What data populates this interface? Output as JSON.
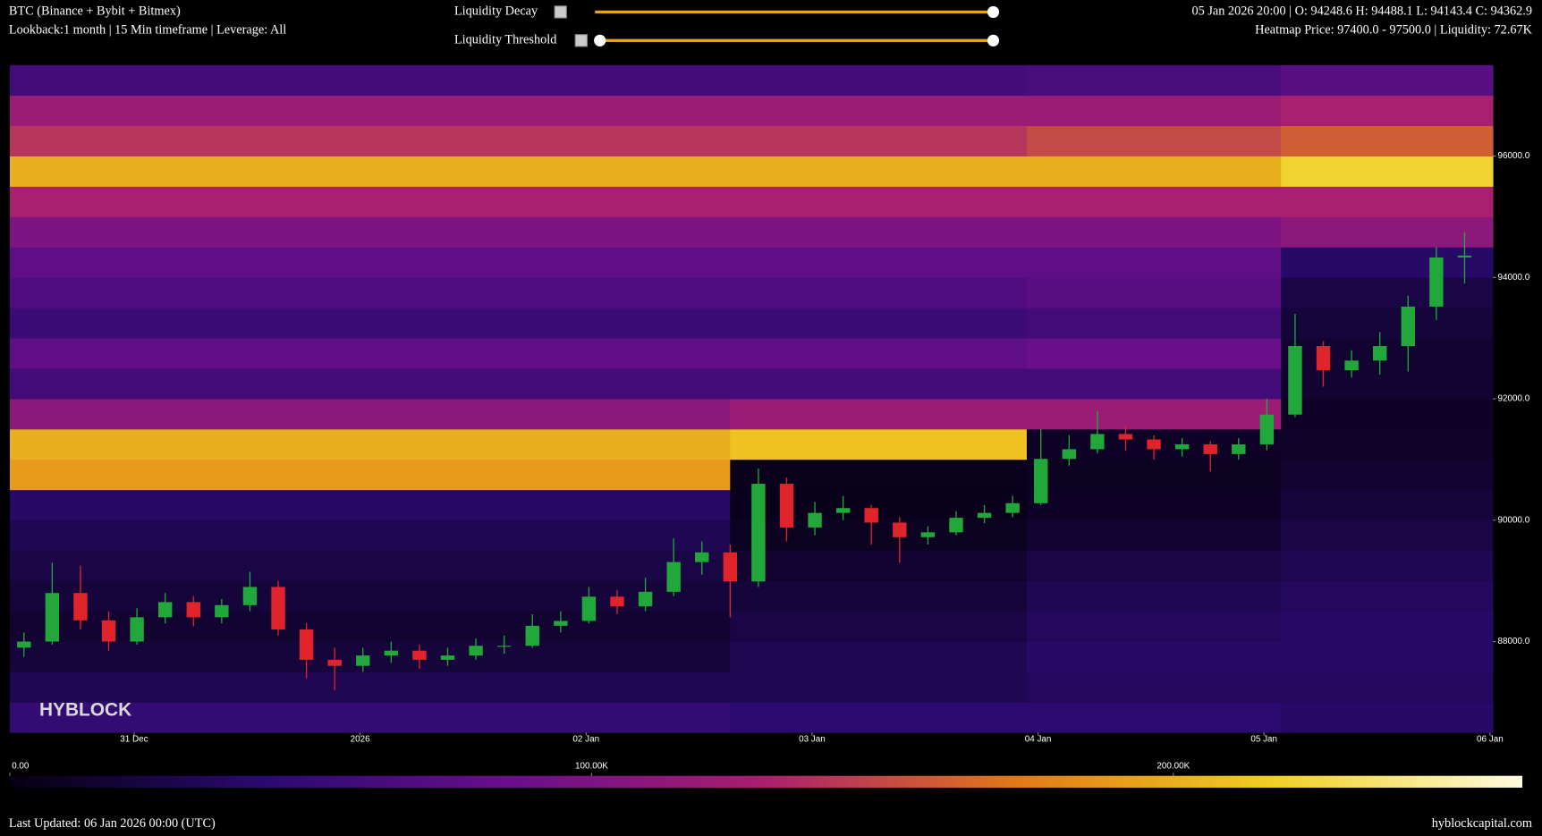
{
  "header": {
    "title": "BTC (Binance + Bybit + Bitmex)",
    "subtitle": "Lookback:1 month | 15 Min timeframe | Leverage: All",
    "ohlc_info": "05 Jan 2026 20:00 | O: 94248.6 H: 94488.1 L: 94143.4 C: 94362.9",
    "hover_info": "Heatmap Price: 97400.0 - 97500.0 | Liquidity: 72.67K"
  },
  "controls": [
    "Liquidity Decay",
    "Liquidity Threshold"
  ],
  "footer": {
    "updated": "Last Updated: 06 Jan 2026 00:00 (UTC)",
    "site": "hyblockcapital.com"
  },
  "chart_data": {
    "type": "heatmap",
    "watermark": "HYBLOCK",
    "xlim": [
      0,
      52.5
    ],
    "xticks": [
      {
        "value": 4.4,
        "label": "31 Dec"
      },
      {
        "value": 12.4,
        "label": "2026"
      },
      {
        "value": 20.4,
        "label": "02 Jan"
      },
      {
        "value": 28.4,
        "label": "03 Jan"
      },
      {
        "value": 36.4,
        "label": "04 Jan"
      },
      {
        "value": 44.4,
        "label": "05 Jan"
      },
      {
        "value": 52.4,
        "label": "06 Jan"
      }
    ],
    "ylim": [
      86500,
      97500
    ],
    "yticks": [
      {
        "value": 88000,
        "label": "88000.0"
      },
      {
        "value": 90000,
        "label": "90000.0"
      },
      {
        "value": 92000,
        "label": "92000.0"
      },
      {
        "value": 94000,
        "label": "94000.0"
      },
      {
        "value": 96000,
        "label": "96000.0"
      }
    ],
    "x_bins": [
      0,
      25.5,
      36,
      45,
      52.5
    ],
    "y_bins": [
      86500,
      87000,
      87500,
      88000,
      88500,
      89000,
      89500,
      90000,
      90500,
      91000,
      91500,
      92000,
      92500,
      93000,
      93500,
      94000,
      94500,
      95000,
      95500,
      96000,
      96500,
      97000,
      97500
    ],
    "z": [
      [
        50000,
        45000,
        45000,
        40000
      ],
      [
        30000,
        30000,
        35000,
        35000
      ],
      [
        20000,
        30000,
        40000,
        40000
      ],
      [
        15000,
        25000,
        35000,
        40000
      ],
      [
        20000,
        20000,
        30000,
        35000
      ],
      [
        25000,
        15000,
        25000,
        30000
      ],
      [
        30000,
        8000,
        15000,
        25000
      ],
      [
        40000,
        5000,
        10000,
        20000
      ],
      [
        190000,
        6000,
        8000,
        15000
      ],
      [
        200000,
        210000,
        10000,
        12000
      ],
      [
        110000,
        120000,
        120000,
        10000
      ],
      [
        60000,
        60000,
        60000,
        15000
      ],
      [
        80000,
        80000,
        85000,
        15000
      ],
      [
        55000,
        55000,
        60000,
        20000
      ],
      [
        70000,
        70000,
        75000,
        25000
      ],
      [
        80000,
        80000,
        80000,
        40000
      ],
      [
        100000,
        100000,
        100000,
        110000
      ],
      [
        130000,
        130000,
        130000,
        130000
      ],
      [
        200000,
        200000,
        200000,
        220000
      ],
      [
        140000,
        140000,
        150000,
        160000
      ],
      [
        120000,
        120000,
        120000,
        130000
      ],
      [
        60000,
        60000,
        65000,
        75000
      ]
    ],
    "clim": [
      0,
      260000
    ],
    "colormap": [
      "#050010",
      "#2a0a6e",
      "#6a0f8a",
      "#a8206e",
      "#e07a1a",
      "#f0d020",
      "#fffbe0"
    ],
    "colorbar_ticks": [
      {
        "value": 0,
        "label": "0.00"
      },
      {
        "value": 100000,
        "label": "100.00K"
      },
      {
        "value": 200000,
        "label": "200.00K"
      }
    ],
    "candles": {
      "up_color": "#22a83a",
      "down_color": "#e0242b",
      "ohlc": [
        [
          87900,
          88150,
          87750,
          88000
        ],
        [
          88000,
          89300,
          87950,
          88800
        ],
        [
          88800,
          89250,
          88200,
          88350
        ],
        [
          88350,
          88500,
          87850,
          88000
        ],
        [
          88000,
          88550,
          87950,
          88400
        ],
        [
          88400,
          88800,
          88300,
          88650
        ],
        [
          88650,
          88750,
          88250,
          88400
        ],
        [
          88400,
          88700,
          88300,
          88600
        ],
        [
          88600,
          89150,
          88500,
          88900
        ],
        [
          88900,
          89000,
          88100,
          88200
        ],
        [
          88200,
          88300,
          87400,
          87700
        ],
        [
          87700,
          87900,
          87200,
          87600
        ],
        [
          87600,
          87900,
          87500,
          87770
        ],
        [
          87770,
          88000,
          87650,
          87850
        ],
        [
          87850,
          87950,
          87550,
          87700
        ],
        [
          87700,
          87900,
          87600,
          87770
        ],
        [
          87770,
          88050,
          87700,
          87930
        ],
        [
          87930,
          88100,
          87800,
          87930
        ],
        [
          87930,
          88450,
          87900,
          88260
        ],
        [
          88260,
          88500,
          88150,
          88340
        ],
        [
          88340,
          88900,
          88300,
          88740
        ],
        [
          88740,
          88850,
          88450,
          88580
        ],
        [
          88580,
          89050,
          88500,
          88820
        ],
        [
          88820,
          89700,
          88750,
          89310
        ],
        [
          89310,
          89650,
          89100,
          89470
        ],
        [
          89470,
          89600,
          88400,
          88990
        ],
        [
          88990,
          90850,
          88900,
          90600
        ],
        [
          90600,
          90700,
          89650,
          89880
        ],
        [
          89880,
          90300,
          89750,
          90120
        ],
        [
          90120,
          90400,
          90000,
          90200
        ],
        [
          90200,
          90250,
          89600,
          89960
        ],
        [
          89960,
          90050,
          89300,
          89720
        ],
        [
          89720,
          89900,
          89600,
          89800
        ],
        [
          89800,
          90150,
          89750,
          90040
        ],
        [
          90040,
          90250,
          89950,
          90120
        ],
        [
          90120,
          90400,
          90050,
          90280
        ],
        [
          90280,
          91500,
          90250,
          91010
        ],
        [
          91010,
          91400,
          90900,
          91170
        ],
        [
          91170,
          91800,
          91100,
          91420
        ],
        [
          91420,
          91550,
          91150,
          91330
        ],
        [
          91330,
          91400,
          91000,
          91170
        ],
        [
          91170,
          91350,
          91050,
          91250
        ],
        [
          91250,
          91300,
          90800,
          91090
        ],
        [
          91090,
          91350,
          91000,
          91250
        ],
        [
          91250,
          92000,
          91150,
          91740
        ],
        [
          91740,
          93400,
          91700,
          92870
        ],
        [
          92870,
          92950,
          92200,
          92470
        ],
        [
          92470,
          92800,
          92350,
          92630
        ],
        [
          92630,
          93100,
          92400,
          92870
        ],
        [
          92870,
          93700,
          92450,
          93520
        ],
        [
          93520,
          94500,
          93300,
          94330
        ],
        [
          94330,
          94750,
          93900,
          94360
        ]
      ]
    }
  }
}
